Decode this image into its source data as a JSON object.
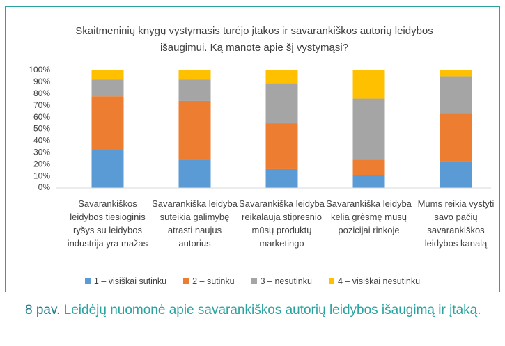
{
  "chart_data": {
    "type": "stacked_bar_100",
    "title": "Skaitmeninių knygų vystymasis turėjo įtakos ir savarankiškos autorių leidybos išaugimui. Ką manote apie šį vystymąsi?",
    "categories": [
      "Savarankiškos leidybos tiesioginis ryšys su leidybos industrija yra mažas",
      "Savarankiška leidyba suteikia galimybę atrasti naujus autorius",
      "Savarankiška leidyba reikalauja stipresnio mūsų produktų marketingo",
      "Savarankiška leidyba kelia grėsmę mūsų pozicijai rinkoje",
      "Mums reikia vystyti savo pačių savarankiškos leidybos kanalą"
    ],
    "series": [
      {
        "name": "1 – visiškai sutinku",
        "color": "#5b9bd5",
        "values": [
          32,
          24,
          16,
          11,
          23
        ]
      },
      {
        "name": "2 – sutinku",
        "color": "#ed7d31",
        "values": [
          46,
          50,
          39,
          13,
          40
        ]
      },
      {
        "name": "3 – nesutinku",
        "color": "#a5a5a5",
        "values": [
          14,
          18,
          34,
          52,
          32
        ]
      },
      {
        "name": "4 – visiškai nesutinku",
        "color": "#ffc000",
        "values": [
          8,
          8,
          11,
          24,
          5
        ]
      }
    ],
    "ylim": [
      0,
      100
    ],
    "yticks": [
      {
        "value": 0,
        "label": "0%"
      },
      {
        "value": 10,
        "label": "10%"
      },
      {
        "value": 20,
        "label": "20%"
      },
      {
        "value": 30,
        "label": "30%"
      },
      {
        "value": 40,
        "label": "40%"
      },
      {
        "value": 50,
        "label": "50%"
      },
      {
        "value": 60,
        "label": "60%"
      },
      {
        "value": 70,
        "label": "70%"
      },
      {
        "value": 80,
        "label": "80%"
      },
      {
        "value": 90,
        "label": "90%"
      },
      {
        "value": 100,
        "label": "100%"
      }
    ],
    "grid": false,
    "legend": "bottom"
  },
  "caption": {
    "label": "8 pav.",
    "text": "Leidėjų nuomonė apie savarankiškos autorių leidybos išaugimą ir įtaką."
  }
}
